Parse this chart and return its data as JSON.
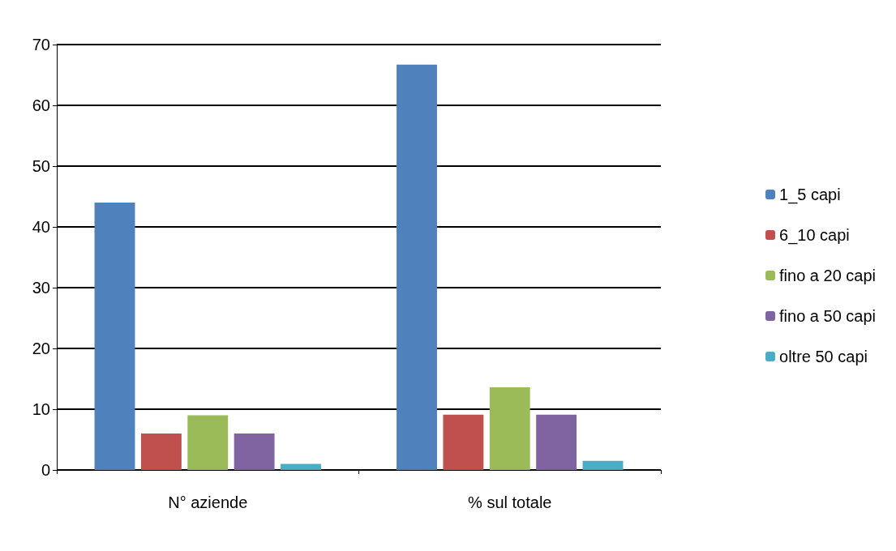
{
  "chart_data": {
    "type": "bar",
    "categories": [
      "N° aziende",
      "% sul totale"
    ],
    "series": [
      {
        "name": "1_5 capi",
        "color": "#4f81bd",
        "values": [
          44,
          66.7
        ]
      },
      {
        "name": "6_10 capi",
        "color": "#c0504d",
        "values": [
          6,
          9.1
        ]
      },
      {
        "name": "fino a 20 capi",
        "color": "#9bbb59",
        "values": [
          9,
          13.6
        ]
      },
      {
        "name": "fino a 50 capi",
        "color": "#8064a2",
        "values": [
          6,
          9.1
        ]
      },
      {
        "name": "oltre 50 capi",
        "color": "#4bacc6",
        "values": [
          1,
          1.5
        ]
      }
    ],
    "ylim": [
      0,
      70
    ],
    "yticks": [
      0,
      10,
      20,
      30,
      40,
      50,
      60,
      70
    ],
    "grid": "y",
    "legend": "right"
  }
}
